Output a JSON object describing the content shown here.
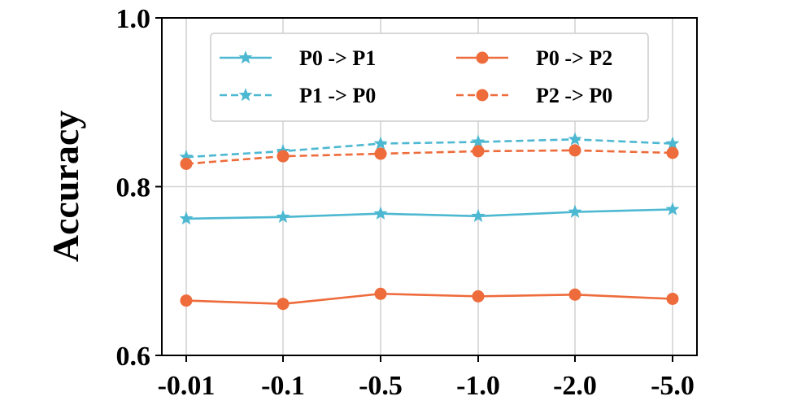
{
  "chart_data": {
    "type": "line",
    "categories": [
      "-0.01",
      "-0.1",
      "-0.5",
      "-1.0",
      "-2.0",
      "-5.0"
    ],
    "ylabel": "Accuracy",
    "xlabel": "",
    "ylim": [
      0.6,
      1.0
    ],
    "yticks": [
      "0.6",
      "0.8",
      "1.0"
    ],
    "yticks_values": [
      0.6,
      0.8,
      1.0
    ],
    "grid": true,
    "legend_position": "top-center",
    "series": [
      {
        "name": "P0 -> P1",
        "color": "#4db8d1",
        "dash": "solid",
        "marker": "star",
        "values": [
          0.762,
          0.764,
          0.768,
          0.765,
          0.77,
          0.773
        ]
      },
      {
        "name": "P1 -> P0",
        "color": "#4db8d1",
        "dash": "dashed",
        "marker": "star",
        "values": [
          0.835,
          0.842,
          0.851,
          0.853,
          0.856,
          0.851
        ]
      },
      {
        "name": "P0 -> P2",
        "color": "#ee6b3b",
        "dash": "solid",
        "marker": "circle",
        "values": [
          0.665,
          0.661,
          0.673,
          0.67,
          0.672,
          0.667
        ]
      },
      {
        "name": "P2 -> P0",
        "color": "#ee6b3b",
        "dash": "dashed",
        "marker": "circle",
        "values": [
          0.827,
          0.836,
          0.839,
          0.842,
          0.843,
          0.84
        ]
      }
    ]
  }
}
